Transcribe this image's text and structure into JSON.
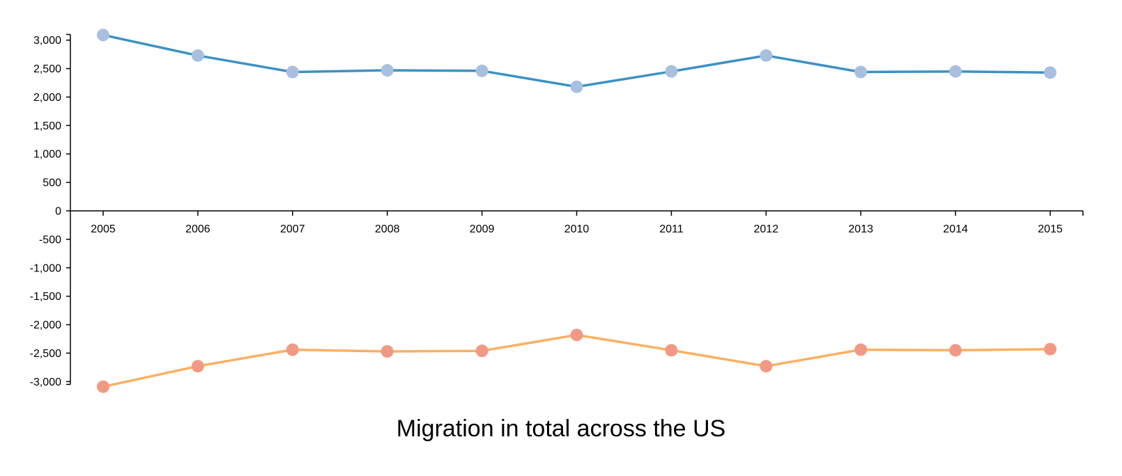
{
  "chart_data": {
    "type": "line",
    "title": "Migration in total across the US",
    "xlabel": "",
    "ylabel": "",
    "x": [
      2005,
      2006,
      2007,
      2008,
      2009,
      2010,
      2011,
      2012,
      2013,
      2014,
      2015
    ],
    "x_tick_labels": [
      "2005",
      "2006",
      "2007",
      "2008",
      "2009",
      "2010",
      "2011",
      "2012",
      "2013",
      "2014",
      "2015"
    ],
    "y_ticks": [
      3000,
      2500,
      2000,
      1500,
      1000,
      500,
      0,
      -500,
      -1000,
      -1500,
      -2000,
      -2500,
      -3000
    ],
    "y_tick_labels": [
      "3,000",
      "2,500",
      "2,000",
      "1,500",
      "1,000",
      "500",
      "0",
      "-500",
      "-1,000",
      "-1,500",
      "-2,000",
      "-2,500",
      "-3,000"
    ],
    "ylim": [
      -3050,
      3100
    ],
    "grid": false,
    "series": [
      {
        "values": [
          3090,
          2730,
          2440,
          2470,
          2460,
          2180,
          2450,
          2730,
          2440,
          2450,
          2430
        ],
        "line_color": "#3c91c4",
        "point_color": "#a9bfe0"
      },
      {
        "values": [
          -3090,
          -2730,
          -2440,
          -2470,
          -2460,
          -2180,
          -2450,
          -2730,
          -2440,
          -2450,
          -2430
        ],
        "line_color": "#fdaf62",
        "point_color": "#f19985"
      }
    ]
  }
}
